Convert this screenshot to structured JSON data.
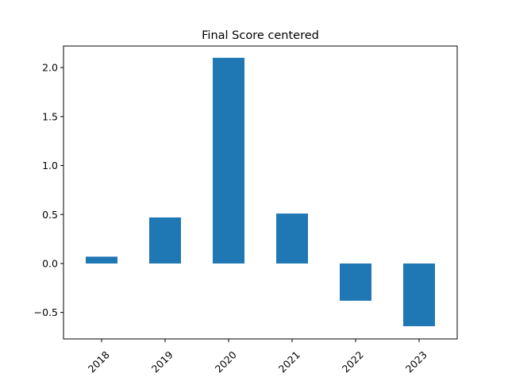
{
  "chart_data": {
    "type": "bar",
    "title": "Final Score centered",
    "xlabel": "",
    "ylabel": "",
    "categories": [
      "2018",
      "2019",
      "2020",
      "2021",
      "2022",
      "2023"
    ],
    "values": [
      0.07,
      0.47,
      2.1,
      0.51,
      -0.38,
      -0.64
    ],
    "ylim": [
      -0.77,
      2.22
    ],
    "yticks": [
      -0.5,
      0.0,
      0.5,
      1.0,
      1.5,
      2.0
    ],
    "ytick_labels": [
      "−0.5",
      "0.0",
      "0.5",
      "1.0",
      "1.5",
      "2.0"
    ],
    "bar_color": "#1f77b4",
    "grid": false,
    "legend": "none"
  }
}
